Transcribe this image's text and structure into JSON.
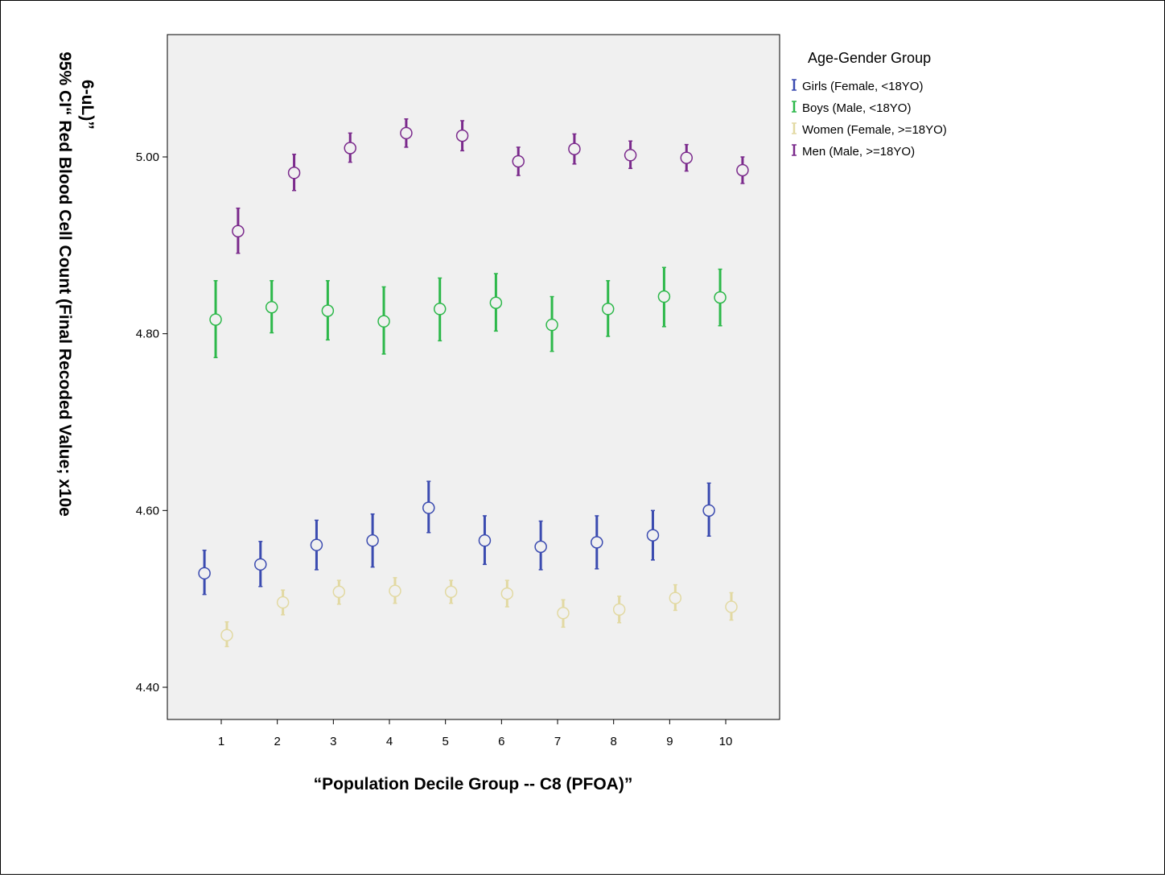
{
  "chart_data": {
    "type": "scatter",
    "subtype": "error-bar",
    "title": "",
    "xlabel": "“Population Decile Group --  C8 (PFOA)”",
    "ylabel_lines": [
      "95% CI“ Red Blood Cell Count (Final Recoded Value; x10e",
      "6-uL)”"
    ],
    "categories": [
      "1",
      "2",
      "3",
      "4",
      "5",
      "6",
      "7",
      "8",
      "9",
      "10"
    ],
    "ylim": [
      4.36,
      5.14
    ],
    "yticks": [
      4.4,
      4.6,
      4.8,
      5.0
    ],
    "ytick_labels": [
      "4.40",
      "4.60",
      "4.80",
      "5.00"
    ],
    "grid": false,
    "legend": {
      "title": "Age-Gender Group",
      "placement": "right"
    },
    "series": [
      {
        "name": "Girls (Female, <18YO)",
        "color": "#3b4bb0",
        "offset": -0.3,
        "mean": [
          4.529,
          4.539,
          4.561,
          4.566,
          4.603,
          4.566,
          4.559,
          4.564,
          4.572,
          4.6
        ],
        "lower": [
          4.505,
          4.514,
          4.533,
          4.536,
          4.575,
          4.539,
          4.533,
          4.534,
          4.544,
          4.571
        ],
        "upper": [
          4.555,
          4.565,
          4.589,
          4.596,
          4.633,
          4.594,
          4.588,
          4.594,
          4.6,
          4.631
        ]
      },
      {
        "name": "Boys (Male, <18YO)",
        "color": "#2db84a",
        "offset": -0.1,
        "mean": [
          4.816,
          4.83,
          4.826,
          4.814,
          4.828,
          4.835,
          4.81,
          4.828,
          4.842,
          4.841
        ],
        "lower": [
          4.773,
          4.801,
          4.793,
          4.777,
          4.792,
          4.803,
          4.78,
          4.797,
          4.808,
          4.809
        ],
        "upper": [
          4.86,
          4.86,
          4.86,
          4.853,
          4.863,
          4.868,
          4.842,
          4.86,
          4.875,
          4.873
        ]
      },
      {
        "name": "Women (Female, >=18YO)",
        "color": "#e2d9a2",
        "offset": 0.1,
        "mean": [
          4.459,
          4.496,
          4.508,
          4.509,
          4.508,
          4.506,
          4.484,
          4.488,
          4.501,
          4.491
        ],
        "lower": [
          4.446,
          4.482,
          4.494,
          4.495,
          4.495,
          4.491,
          4.468,
          4.473,
          4.487,
          4.476
        ],
        "upper": [
          4.474,
          4.51,
          4.521,
          4.524,
          4.521,
          4.521,
          4.499,
          4.503,
          4.516,
          4.507
        ]
      },
      {
        "name": "Men (Male, >=18YO)",
        "color": "#7b2a8c",
        "offset": 0.3,
        "mean": [
          4.916,
          4.982,
          5.01,
          5.027,
          5.024,
          4.995,
          5.009,
          5.002,
          4.999,
          4.985
        ],
        "lower": [
          4.891,
          4.962,
          4.994,
          5.011,
          5.007,
          4.979,
          4.992,
          4.987,
          4.984,
          4.97
        ],
        "upper": [
          4.942,
          5.003,
          5.027,
          5.043,
          5.041,
          5.011,
          5.026,
          5.018,
          5.014,
          5.0
        ]
      }
    ]
  }
}
